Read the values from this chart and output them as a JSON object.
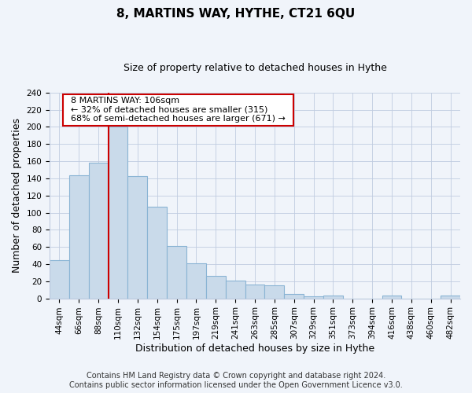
{
  "title": "8, MARTINS WAY, HYTHE, CT21 6QU",
  "subtitle": "Size of property relative to detached houses in Hythe",
  "xlabel": "Distribution of detached houses by size in Hythe",
  "ylabel": "Number of detached properties",
  "bar_labels": [
    "44sqm",
    "66sqm",
    "88sqm",
    "110sqm",
    "132sqm",
    "154sqm",
    "175sqm",
    "197sqm",
    "219sqm",
    "241sqm",
    "263sqm",
    "285sqm",
    "307sqm",
    "329sqm",
    "351sqm",
    "373sqm",
    "394sqm",
    "416sqm",
    "438sqm",
    "460sqm",
    "482sqm"
  ],
  "bar_values": [
    45,
    144,
    158,
    200,
    143,
    107,
    61,
    41,
    26,
    21,
    16,
    15,
    5,
    2,
    3,
    0,
    0,
    3,
    0,
    0,
    3
  ],
  "bar_color": "#c9daea",
  "bar_edge_color": "#8ab4d4",
  "vline_x_index": 3,
  "vline_color": "#cc0000",
  "ylim": [
    0,
    240
  ],
  "yticks": [
    0,
    20,
    40,
    60,
    80,
    100,
    120,
    140,
    160,
    180,
    200,
    220,
    240
  ],
  "annotation_title": "8 MARTINS WAY: 106sqm",
  "annotation_line1": "← 32% of detached houses are smaller (315)",
  "annotation_line2": "68% of semi-detached houses are larger (671) →",
  "annotation_box_facecolor": "#ffffff",
  "annotation_box_edgecolor": "#cc0000",
  "footer_line1": "Contains HM Land Registry data © Crown copyright and database right 2024.",
  "footer_line2": "Contains public sector information licensed under the Open Government Licence v3.0.",
  "background_color": "#f0f4fa",
  "grid_color": "#c0cce0",
  "title_fontsize": 11,
  "subtitle_fontsize": 9,
  "xlabel_fontsize": 9,
  "ylabel_fontsize": 9,
  "tick_fontsize": 7.5,
  "annotation_fontsize": 8,
  "footer_fontsize": 7
}
